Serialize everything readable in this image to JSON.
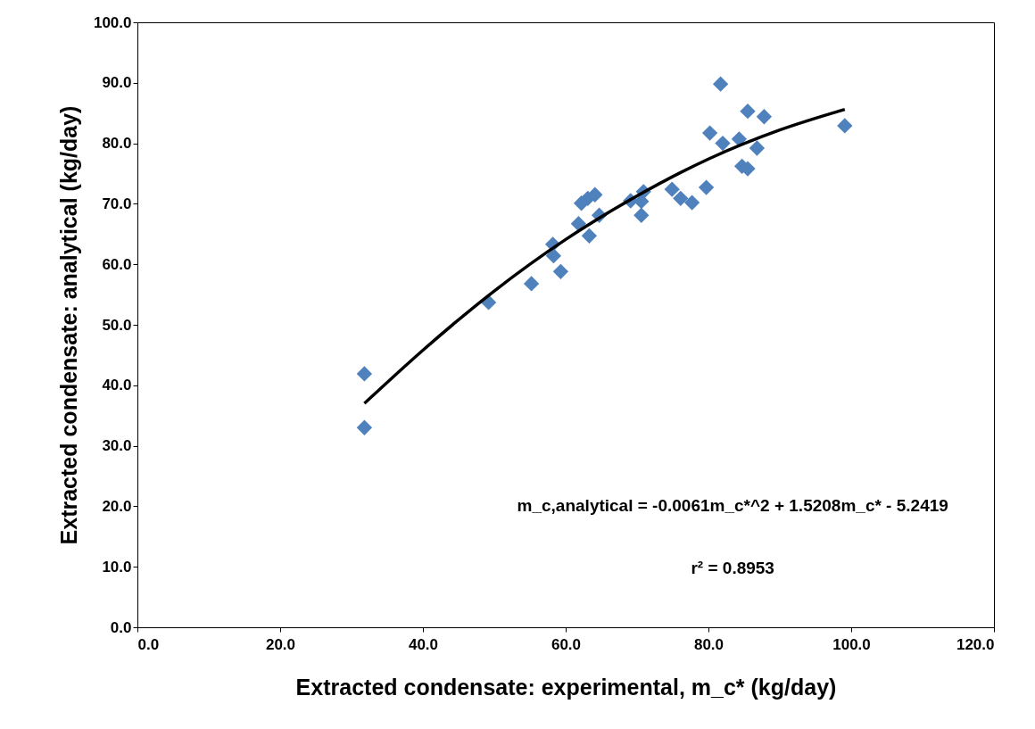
{
  "chart_data": {
    "type": "scatter",
    "xlabel": "Extracted condensate: experimental, m_c*  (kg/day)",
    "ylabel": "Extracted condensate: analytical (kg/day)",
    "series": [
      {
        "color": "#4f81bd",
        "marker": "diamond",
        "x": [
          31.8,
          31.8,
          49.2,
          55.2,
          58.2,
          58.3,
          59.3,
          61.8,
          63.3,
          62.2,
          63.1,
          64.1,
          64.7,
          69.1,
          70.9,
          70.6,
          70.6,
          74.9,
          76.1,
          77.7,
          79.7,
          80.2,
          81.7,
          82.0,
          85.5,
          87.8,
          84.3,
          86.8,
          84.7,
          85.5,
          99.1
        ],
        "values": [
          41.9,
          33.0,
          53.7,
          56.8,
          63.3,
          61.4,
          58.8,
          66.7,
          64.7,
          70.1,
          70.9,
          71.5,
          68.1,
          70.5,
          72.0,
          68.1,
          70.4,
          72.4,
          70.9,
          70.2,
          72.7,
          81.7,
          89.8,
          80.0,
          85.3,
          84.4,
          80.7,
          79.2,
          76.2,
          75.8,
          82.9
        ]
      },
      {
        "type": "line",
        "color": "#000000",
        "marker": "none",
        "line_style": "solid",
        "x": [
          31.8,
          40,
          50,
          60,
          70,
          80,
          90,
          99.1
        ],
        "values": [
          37.0,
          45.8,
          55.6,
          64.1,
          71.3,
          77.4,
          82.2,
          85.6
        ]
      }
    ],
    "xlim": [
      0,
      120
    ],
    "xticks": [
      {
        "value": 0,
        "label": "0.0"
      },
      {
        "value": 20,
        "label": "20.0"
      },
      {
        "value": 40,
        "label": "40.0"
      },
      {
        "value": 60,
        "label": "60.0"
      },
      {
        "value": 80,
        "label": "80.0"
      },
      {
        "value": 100,
        "label": "100.0"
      },
      {
        "value": 120,
        "label": "120.0"
      }
    ],
    "ylim": [
      0,
      100
    ],
    "yticks": [
      {
        "value": 0,
        "label": "0.0"
      },
      {
        "value": 10,
        "label": "10.0"
      },
      {
        "value": 20,
        "label": "20.0"
      },
      {
        "value": 30,
        "label": "30.0"
      },
      {
        "value": 40,
        "label": "40.0"
      },
      {
        "value": 50,
        "label": "50.0"
      },
      {
        "value": 60,
        "label": "60.0"
      },
      {
        "value": 70,
        "label": "70.0"
      },
      {
        "value": 80,
        "label": "80.0"
      },
      {
        "value": 90,
        "label": "90.0"
      },
      {
        "value": 100,
        "label": "100.0"
      }
    ],
    "annotations": [
      "m_c,analytical  = -0.0061m_c*^2 + 1.5208m_c*  - 5.2419",
      "r² = 0.8953"
    ],
    "grid": false,
    "legend": false
  }
}
